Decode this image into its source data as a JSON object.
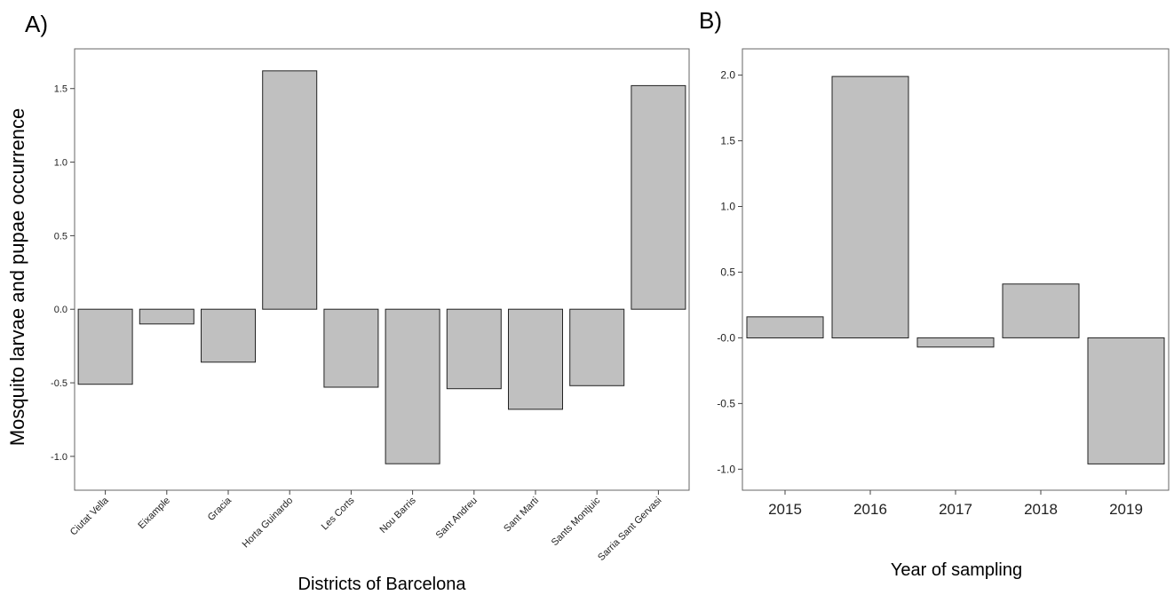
{
  "chart_data": [
    {
      "panel": "A)",
      "type": "bar",
      "title": "",
      "xlabel": "Districts of Barcelona",
      "ylabel": "Mosquito larvae and pupae occurrence",
      "categories": [
        "Ciutat Vella",
        "Eixample",
        "Gracia",
        "Horta Guinardo",
        "Les Corts",
        "Nou Barris",
        "Sant Andreu",
        "Sant Marti",
        "Sants Montjuic",
        "Sarria Sant Gervasi"
      ],
      "values": [
        -0.51,
        -0.1,
        -0.36,
        1.62,
        -0.53,
        -1.05,
        -0.54,
        -0.68,
        -0.52,
        1.52
      ],
      "ylim": [
        -1.23,
        1.77
      ],
      "yticks": [
        -1.0,
        -0.5,
        0.0,
        0.5,
        1.0,
        1.5
      ],
      "ytick_labels": [
        "-1.0",
        "-0.5",
        "0.0",
        "0.5",
        "1.0",
        "1.5"
      ],
      "bar_color": "#c0c0c0",
      "grid": false
    },
    {
      "panel": "B)",
      "type": "bar",
      "title": "",
      "xlabel": "Year of sampling",
      "ylabel": "",
      "categories": [
        "2015",
        "2016",
        "2017",
        "2018",
        "2019"
      ],
      "values": [
        0.16,
        1.99,
        -0.07,
        0.41,
        -0.96
      ],
      "ylim": [
        -1.16,
        2.2
      ],
      "yticks": [
        -1.0,
        -0.5,
        0.0,
        0.5,
        1.0,
        1.5,
        2.0
      ],
      "ytick_labels": [
        "-1.0",
        "-0.5",
        "-0.0",
        "0.5",
        "1.0",
        "1.5",
        "2.0"
      ],
      "bar_color": "#c0c0c0",
      "grid": false
    }
  ]
}
